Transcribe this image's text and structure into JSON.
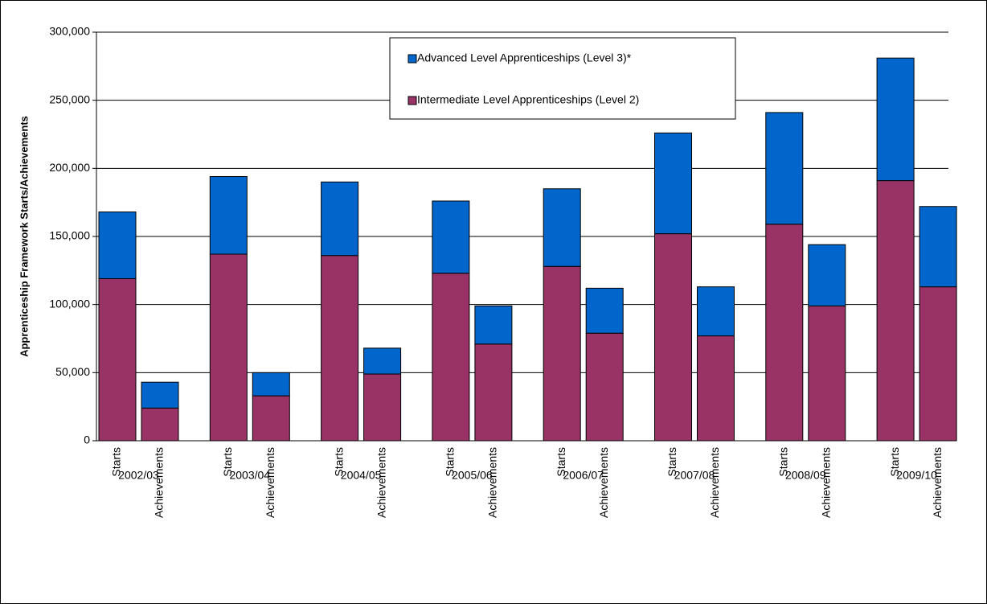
{
  "chart_data": {
    "type": "stacked_bar",
    "y_axis_label": "Apprenticeship Framework Starts/Achievements",
    "groups": [
      "2002/03",
      "2003/04",
      "2004/05",
      "2005/06",
      "2006/07",
      "2007/08",
      "2008/09",
      "2009/10"
    ],
    "categories": [
      "Starts",
      "Achievements",
      "Starts",
      "Achievements",
      "Starts",
      "Achievements",
      "Starts",
      "Achievements",
      "Starts",
      "Achievements",
      "Starts",
      "Achievements",
      "Starts",
      "Achievements",
      "Starts",
      "Achievements"
    ],
    "series": [
      {
        "name": "Intermediate Level Apprenticeships (Level 2)",
        "color": "#993366",
        "values": [
          119000,
          24000,
          137000,
          33000,
          136000,
          49000,
          123000,
          71000,
          128000,
          79000,
          152000,
          77000,
          159000,
          99000,
          191000,
          113000
        ]
      },
      {
        "name": "Advanced Level Apprenticeships (Level 3)*",
        "color": "#0066cc",
        "values": [
          49000,
          19000,
          57000,
          17000,
          54000,
          19000,
          53000,
          28000,
          57000,
          33000,
          74000,
          36000,
          82000,
          45000,
          90000,
          59000
        ]
      }
    ],
    "ylim": [
      0,
      300000
    ],
    "yticks": [
      0,
      {
        "value": 50000,
        "label": "50,000"
      },
      {
        "value": 100000,
        "label": "100,000"
      },
      {
        "value": 150000,
        "label": "150,000"
      },
      {
        "value": 200000,
        "label": "200,000"
      },
      {
        "value": 250000,
        "label": "250,000"
      },
      {
        "value": 300000,
        "label": "300,000"
      }
    ],
    "grid": true,
    "legend": "top-center"
  }
}
